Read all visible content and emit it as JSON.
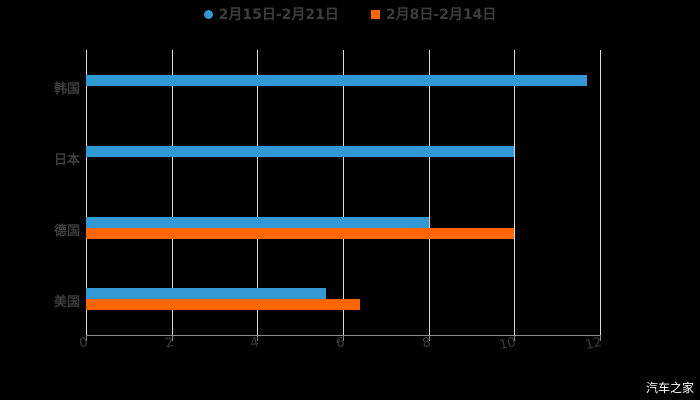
{
  "chart_data": {
    "type": "bar",
    "orientation": "horizontal",
    "title": "",
    "categories": [
      "韩国",
      "日本",
      "德国",
      "美国"
    ],
    "series": [
      {
        "name": "2月15日-2月21日",
        "color": "#3399D4",
        "values": [
          11.7,
          10.0,
          8.0,
          5.6
        ]
      },
      {
        "name": "2月8日-2月14日",
        "color": "#FF6600",
        "values": [
          null,
          null,
          10.0,
          6.4
        ]
      }
    ],
    "xlabel": "",
    "ylabel": "",
    "xlim": [
      0,
      12
    ],
    "xticks": [
      "0",
      "2",
      "4",
      "6",
      "8",
      "10",
      "12"
    ],
    "grid": true,
    "legend_position": "top"
  },
  "legend": {
    "series1": "2月15日-2月21日",
    "series2": "2月8日-2月14日"
  },
  "watermark": "汽车之家"
}
